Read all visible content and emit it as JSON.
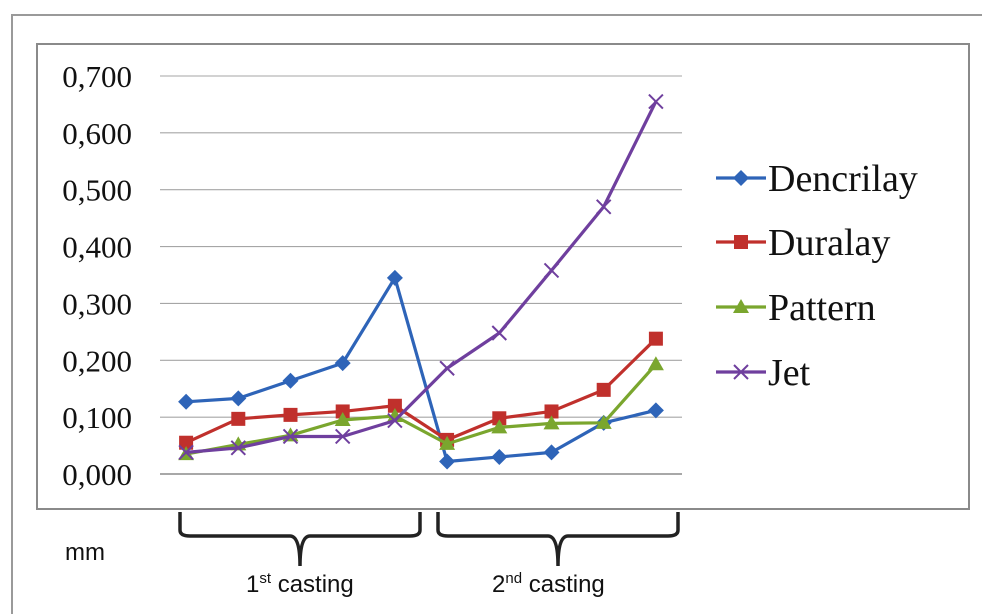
{
  "unit_label": "mm",
  "groups": [
    {
      "label": "1",
      "sup": "st",
      "rest": " casting"
    },
    {
      "label": "2",
      "sup": "nd",
      "rest": " casting"
    }
  ],
  "chart_data": {
    "type": "line",
    "ylim": [
      0,
      0.7
    ],
    "y_ticks": [
      "0,000",
      "0,100",
      "0,200",
      "0,300",
      "0,400",
      "0,500",
      "0,600",
      "0,700"
    ],
    "grid": true,
    "legend_position": "right",
    "x": [
      1,
      2,
      3,
      4,
      5,
      6,
      7,
      8,
      9,
      10
    ],
    "series": [
      {
        "name": "Dencrilay",
        "color": "#2e64b8",
        "marker": "diamond",
        "values": [
          0.127,
          0.133,
          0.164,
          0.195,
          0.345,
          0.022,
          0.03,
          0.038,
          0.09,
          0.112
        ]
      },
      {
        "name": "Duralay",
        "color": "#c0302c",
        "marker": "square",
        "values": [
          0.055,
          0.097,
          0.104,
          0.11,
          0.12,
          0.06,
          0.098,
          0.11,
          0.148,
          0.238
        ]
      },
      {
        "name": "Pattern",
        "color": "#7aa62e",
        "marker": "triangle",
        "values": [
          0.035,
          0.052,
          0.068,
          0.095,
          0.102,
          0.053,
          0.082,
          0.089,
          0.09,
          0.193
        ]
      },
      {
        "name": "Jet",
        "color": "#6f3f9e",
        "marker": "x",
        "values": [
          0.038,
          0.046,
          0.066,
          0.066,
          0.094,
          0.186,
          0.248,
          0.358,
          0.47,
          0.655
        ]
      }
    ]
  }
}
